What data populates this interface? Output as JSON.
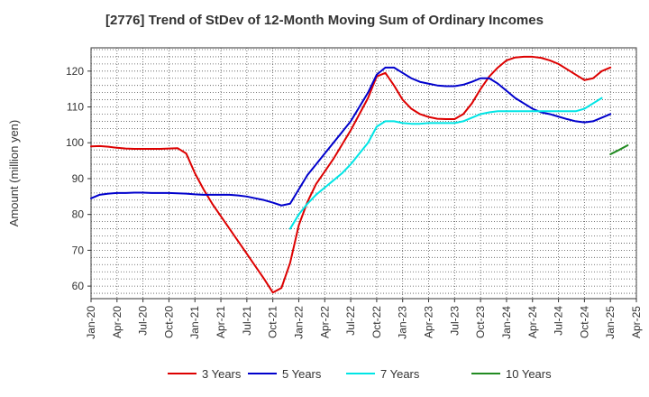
{
  "chart_data": {
    "type": "line",
    "title": "[2776]  Trend of StDev of 12-Month Moving Sum of Ordinary Incomes",
    "ylabel": "Amount (million yen)",
    "xlabel": "",
    "ylim": [
      56.5,
      126.5
    ],
    "yticks": [
      60,
      70,
      80,
      90,
      100,
      110,
      120
    ],
    "xlim": [
      "Jan-20",
      "Apr-25"
    ],
    "xticks": [
      "Jan-20",
      "Apr-20",
      "Jul-20",
      "Oct-20",
      "Jan-21",
      "Apr-21",
      "Jul-21",
      "Oct-21",
      "Jan-22",
      "Apr-22",
      "Jul-22",
      "Oct-22",
      "Jan-23",
      "Apr-23",
      "Jul-23",
      "Oct-23",
      "Jan-24",
      "Apr-24",
      "Jul-24",
      "Oct-24",
      "Jan-25",
      "Apr-25"
    ],
    "grid": true,
    "legend_position": "bottom",
    "series": [
      {
        "name": "3 Years",
        "color": "#dd0000",
        "start": "Jan-20",
        "values": [
          99.0,
          99.1,
          98.9,
          98.6,
          98.4,
          98.3,
          98.3,
          98.3,
          98.3,
          98.4,
          98.5,
          97.0,
          91.5,
          87.0,
          83.0,
          79.5,
          76.0,
          72.5,
          69.0,
          65.5,
          62.0,
          58.2,
          59.5,
          66.5,
          77.0,
          83.5,
          88.5,
          92.0,
          95.5,
          99.5,
          103.5,
          108.0,
          112.5,
          118.5,
          119.5,
          116.0,
          112.0,
          109.5,
          108.0,
          107.2,
          106.7,
          106.6,
          106.6,
          108.0,
          111.0,
          115.0,
          118.5,
          121.0,
          123.0,
          123.8,
          124.0,
          124.0,
          123.7,
          123.0,
          122.0,
          120.5,
          119.0,
          117.5,
          118.0,
          120.0,
          121.0
        ]
      },
      {
        "name": "5 Years",
        "color": "#0000cc",
        "start": "Jan-20",
        "values": [
          84.5,
          85.5,
          85.8,
          86.0,
          86.0,
          86.1,
          86.1,
          86.0,
          86.0,
          86.0,
          85.9,
          85.8,
          85.6,
          85.5,
          85.5,
          85.5,
          85.5,
          85.3,
          85.0,
          84.5,
          84.0,
          83.3,
          82.5,
          83.0,
          87.0,
          91.0,
          94.0,
          97.0,
          100.0,
          103.0,
          106.0,
          110.0,
          114.0,
          119.0,
          121.0,
          121.0,
          119.5,
          118.0,
          117.0,
          116.5,
          116.0,
          115.8,
          115.8,
          116.2,
          117.0,
          118.0,
          118.0,
          116.5,
          114.5,
          112.5,
          111.0,
          109.5,
          108.5,
          108.0,
          107.3,
          106.6,
          106.0,
          105.7,
          106.0,
          107.0,
          108.0
        ]
      },
      {
        "name": "7 Years",
        "color": "#00e5e5",
        "start": "Oct-21",
        "values": [
          null,
          null,
          76.0,
          80.0,
          83.0,
          85.5,
          87.5,
          89.5,
          91.5,
          94.0,
          97.0,
          100.0,
          104.5,
          106.0,
          106.0,
          105.5,
          105.3,
          105.3,
          105.5,
          105.5,
          105.5,
          105.5,
          106.0,
          107.0,
          108.0,
          108.5,
          108.8,
          108.8,
          108.8,
          108.8,
          108.8,
          108.8,
          108.8,
          108.8,
          108.8,
          108.8,
          109.5,
          111.0,
          112.5
        ]
      },
      {
        "name": "10 Years",
        "color": "#228b22",
        "start": "Nov-24",
        "values": [
          null,
          null,
          96.8,
          98.0,
          99.3
        ]
      }
    ]
  }
}
